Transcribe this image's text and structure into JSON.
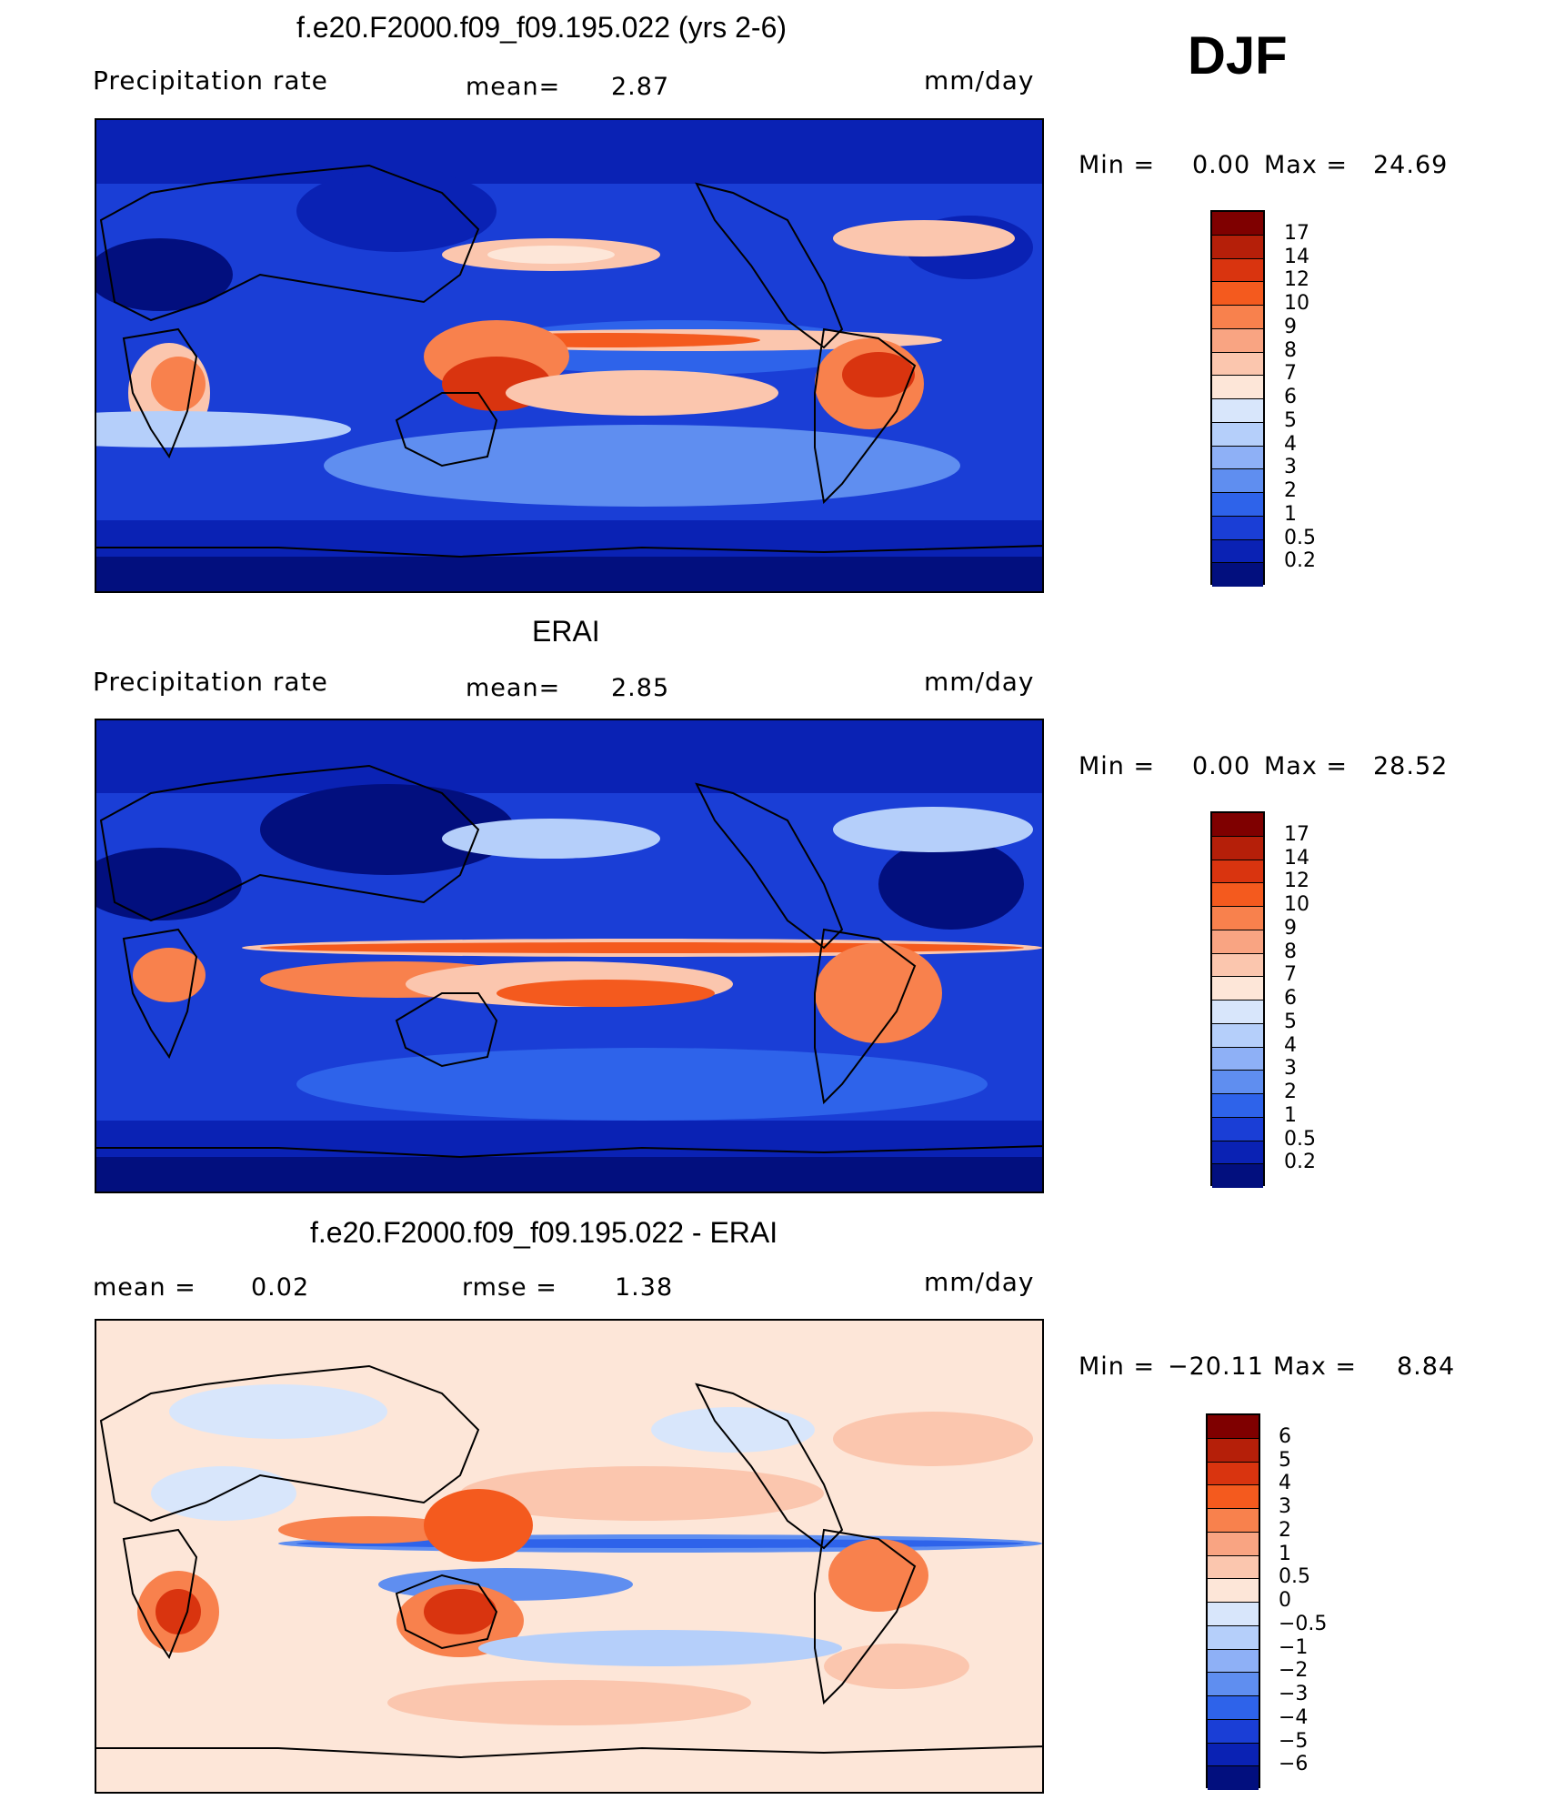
{
  "season": "DJF",
  "panels": [
    {
      "title": "f.e20.F2000.f09_f09.195.022 (yrs 2-6)",
      "left_label": "Precipitation  rate",
      "center_label": "mean=",
      "center_value": "2.87",
      "units": "mm/day",
      "min_label": "Min  =",
      "min_value": "0.00",
      "max_label": "Max  =",
      "max_value": "24.69",
      "colorbar_labels": [
        "17",
        "14",
        "12",
        "10",
        "9",
        "8",
        "7",
        "6",
        "5",
        "4",
        "3",
        "2",
        "1",
        "0.5",
        "0.2"
      ]
    },
    {
      "title": "ERAI",
      "left_label": "Precipitation  rate",
      "center_label": "mean=",
      "center_value": "2.85",
      "units": "mm/day",
      "min_label": "Min  =",
      "min_value": "0.00",
      "max_label": "Max  =",
      "max_value": "28.52",
      "colorbar_labels": [
        "17",
        "14",
        "12",
        "10",
        "9",
        "8",
        "7",
        "6",
        "5",
        "4",
        "3",
        "2",
        "1",
        "0.5",
        "0.2"
      ]
    },
    {
      "title": "f.e20.F2000.f09_f09.195.022 - ERAI",
      "left_label": "mean  =",
      "left_value": "0.02",
      "center_label": "rmse  =",
      "center_value": "1.38",
      "units": "mm/day",
      "min_label": "Min  =",
      "min_value": "−20.11",
      "max_label": "Max  =",
      "max_value": "8.84",
      "colorbar_labels": [
        "6",
        "5",
        "4",
        "3",
        "2",
        "1",
        "0.5",
        "0",
        "−0.5",
        "−1",
        "−2",
        "−3",
        "−4",
        "−5",
        "−6"
      ]
    }
  ],
  "colors": {
    "precip_scale": [
      "#7f0000",
      "#b51f09",
      "#d9340f",
      "#f45a1e",
      "#f8814d",
      "#f9a482",
      "#fbc6ae",
      "#fde6d8",
      "#d8e6fb",
      "#b5cffa",
      "#8eb0f6",
      "#5f8ef0",
      "#2e63ea",
      "#1a3ed6",
      "#0a22b4",
      "#020f7e"
    ],
    "diff_scale": [
      "#7f0000",
      "#b51f09",
      "#d9340f",
      "#f45a1e",
      "#f8814d",
      "#f9a482",
      "#fbc6ae",
      "#fde6d8",
      "#d8e6fb",
      "#b5cffa",
      "#8eb0f6",
      "#5f8ef0",
      "#2e63ea",
      "#1a3ed6",
      "#0a22b4",
      "#020f7e"
    ],
    "coastline": "#000000"
  }
}
